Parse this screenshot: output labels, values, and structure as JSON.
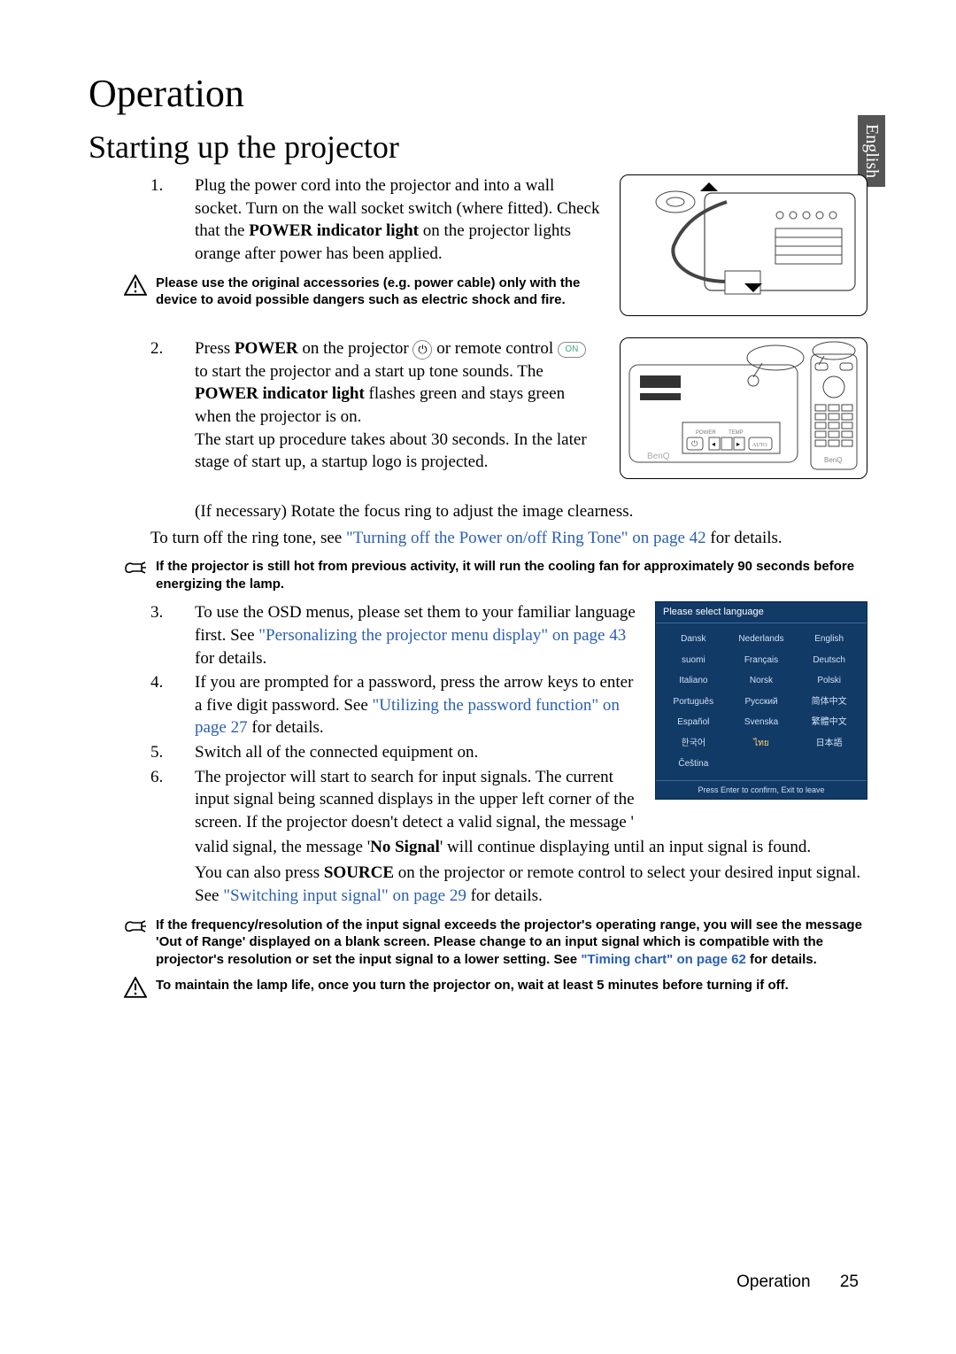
{
  "language_tab": "English",
  "h1": "Operation",
  "h2": "Starting up the projector",
  "step1": {
    "num": "1.",
    "text_a": "Plug the power cord into the projector and into a wall socket. Turn on the wall socket switch (where fitted). Check that the ",
    "text_b": "POWER indicator light",
    "text_c": " on the projector lights orange after power has been applied."
  },
  "note1": "Please use the original accessories (e.g. power cable) only with the device to avoid possible dangers such as electric shock and fire.",
  "step2": {
    "num": "2.",
    "a": "Press ",
    "b": "POWER",
    "c": " on the projector ",
    "d": " or remote control ",
    "e": " to start the projector and a start up tone sounds. The ",
    "f": "POWER indicator light",
    "g": " flashes green and stays green when the projector is on.",
    "h": "The start up procedure takes about 30 seconds. In the later stage of start up, a startup logo is projected.",
    "i": "(If necessary) Rotate the focus ring to adjust the image clearness."
  },
  "turnoff_a": "To turn off the ring tone, see ",
  "turnoff_link": "\"Turning off the Power on/off Ring Tone\" on page 42",
  "turnoff_b": " for details.",
  "note2": "If the projector is still hot from previous activity, it will run the cooling fan for approximately 90 seconds before energizing the lamp.",
  "step3": {
    "num": "3.",
    "a": "To use the OSD menus, please set them to your familiar language first. See ",
    "link": "\"Personalizing the projector menu display\" on page 43",
    "b": " for details."
  },
  "step4": {
    "num": "4.",
    "a": "If you are prompted for a password, press the arrow keys to enter a five digit password. See ",
    "link": "\"Utilizing the password function\" on page 27",
    "b": " for details."
  },
  "step5": {
    "num": "5.",
    "a": "Switch all of the connected equipment on."
  },
  "step6": {
    "num": "6.",
    "a": "The projector will start to search for input signals. The current input signal being scanned displays in the upper left corner of the screen. If the projector doesn't detect a valid signal, the message '",
    "b": "No Signal",
    "c": "' will continue displaying until an input signal is found.",
    "d": "You can also press ",
    "e": "SOURCE",
    "f": " on the projector or remote control to select your desired input signal. See ",
    "link": "\"Switching input signal\" on page 29",
    "g": " for details."
  },
  "note3_a": "If the frequency/resolution of the input signal exceeds the projector's operating range, you will see the message 'Out of Range' displayed on a blank screen. Please change to an input signal which is compatible with the projector's resolution or set the input signal to a lower setting. See ",
  "note3_link": "\"Timing chart\" on page 62",
  "note3_b": " for details.",
  "note4": "To maintain the lamp life, once you turn the projector on, wait at least 5 minutes before turning if off.",
  "on_label": "ON",
  "lang_panel": {
    "header": "Please select language",
    "langs": [
      "Dansk",
      "Nederlands",
      "English",
      "suomi",
      "Français",
      "Deutsch",
      "Italiano",
      "Norsk",
      "Polski",
      "Português",
      "Русский",
      "简体中文",
      "Español",
      "Svenska",
      "繁體中文",
      "한국어",
      "ไทย",
      "日本語",
      "Čeština",
      "",
      ""
    ],
    "highlight_index": 16,
    "footer": "Press Enter to confirm, Exit to leave",
    "bg_color": "#123a66"
  },
  "footer_label": "Operation",
  "footer_page": "25"
}
